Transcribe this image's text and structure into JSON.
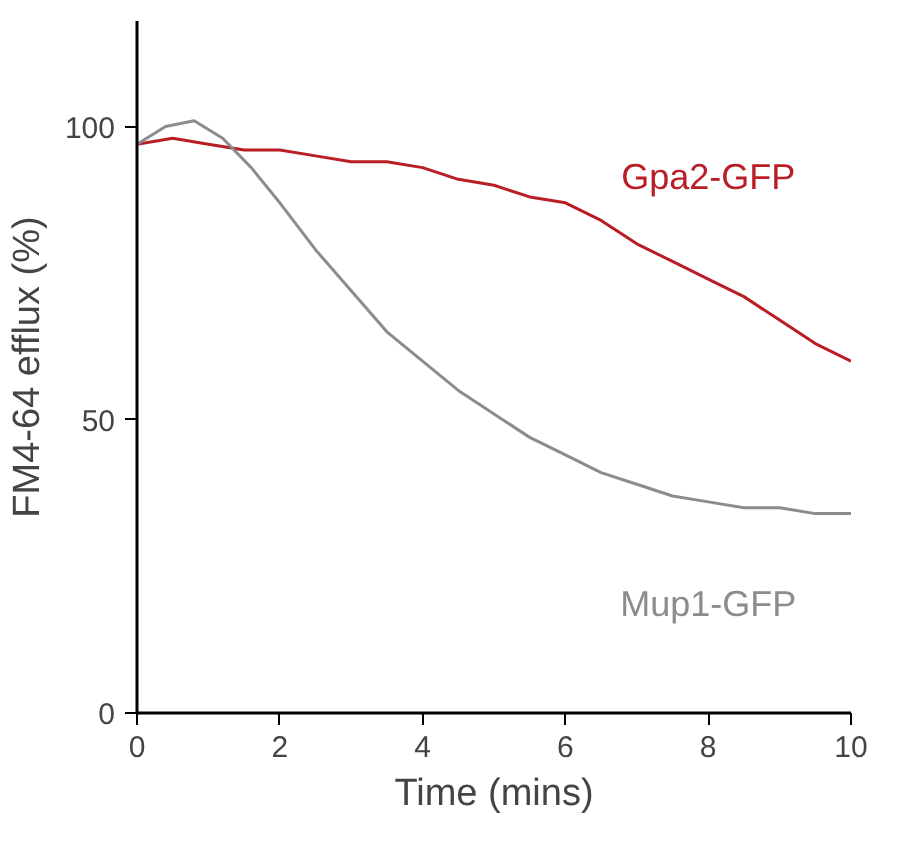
{
  "chart_data": {
    "type": "line",
    "xlabel": "Time (mins)",
    "ylabel": "FM4-64 efflux (%)",
    "xlim": [
      0,
      10
    ],
    "ylim": [
      0,
      118
    ],
    "xticks": [
      0,
      2,
      4,
      6,
      8,
      10
    ],
    "yticks": [
      0,
      50,
      100
    ],
    "grid": false,
    "legend": false,
    "marker": "none",
    "line_style": "solid",
    "series": [
      {
        "name": "Gpa2-GFP",
        "color": "#b81e23",
        "x": [
          0,
          0.5,
          1,
          1.5,
          2,
          2.5,
          3,
          3.5,
          4,
          4.5,
          5,
          5.5,
          6,
          6.5,
          7,
          7.5,
          8,
          8.5,
          9,
          9.5,
          10
        ],
        "values": [
          97,
          98,
          97,
          96,
          96,
          95,
          94,
          94,
          93,
          91,
          90,
          88,
          87,
          84,
          80,
          77,
          74,
          71,
          67,
          63,
          60
        ]
      },
      {
        "name": "Mup1-GFP",
        "color": "#8c8c8c",
        "x": [
          0,
          0.4,
          0.8,
          1.2,
          1.6,
          2,
          2.5,
          3,
          3.5,
          4,
          4.5,
          5,
          5.5,
          6,
          6.5,
          7,
          7.5,
          8,
          8.5,
          9,
          9.5,
          10
        ],
        "values": [
          97,
          100,
          101,
          98,
          93,
          87,
          79,
          72,
          65,
          60,
          55,
          51,
          47,
          44,
          41,
          39,
          37,
          36,
          35,
          35,
          34,
          34
        ]
      }
    ]
  }
}
